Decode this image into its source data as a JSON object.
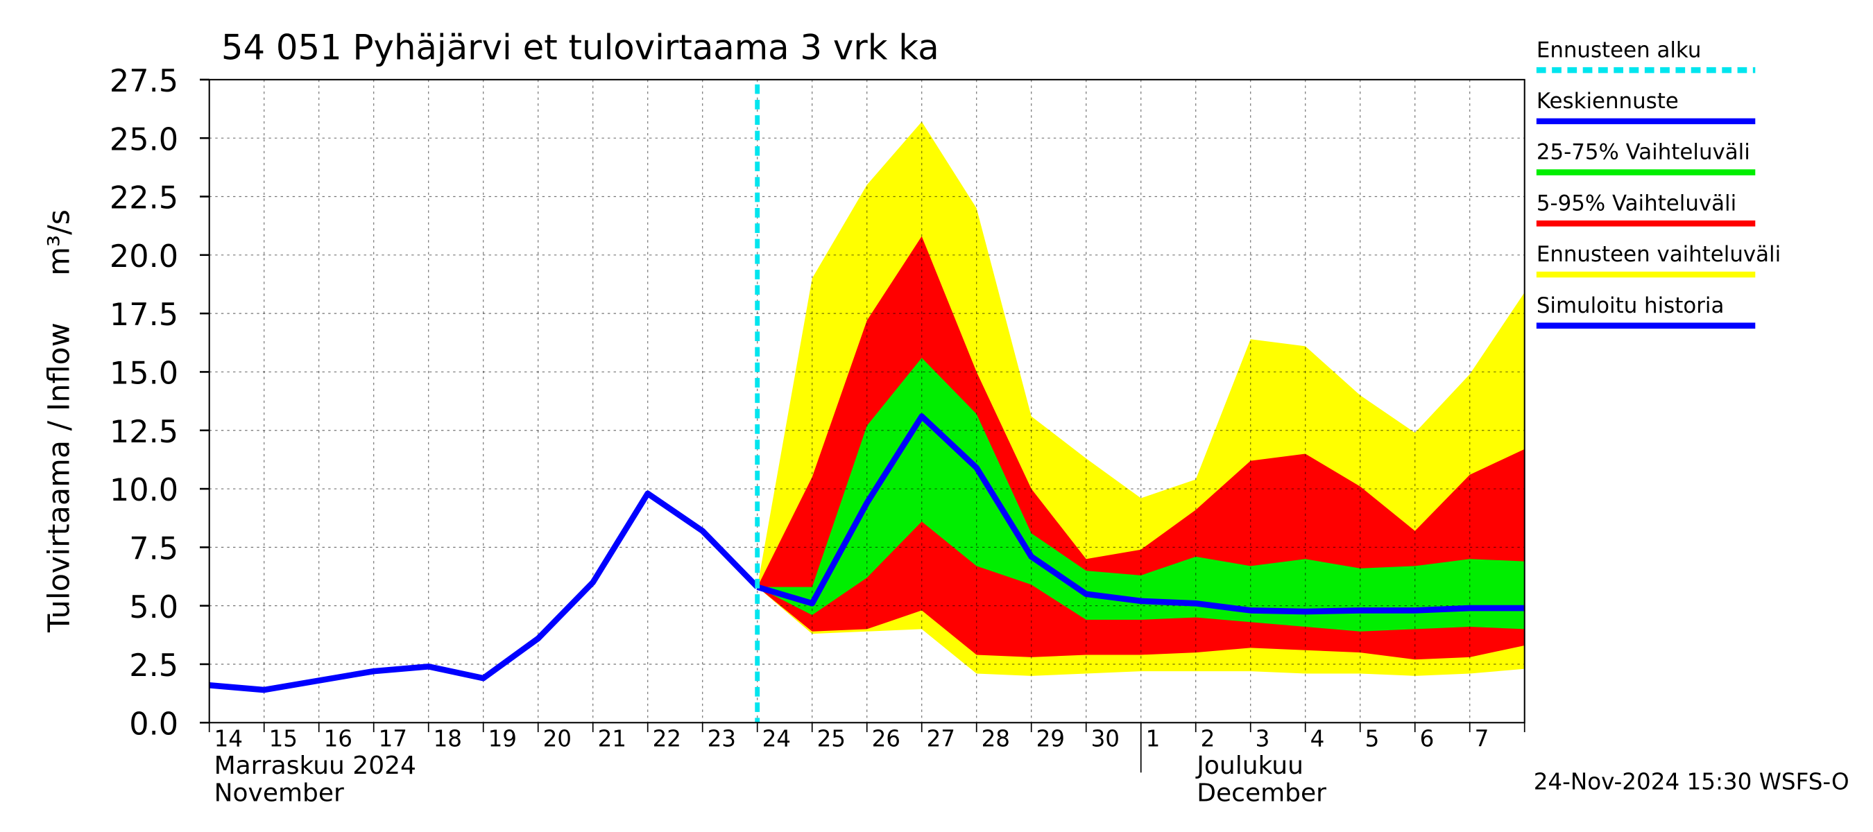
{
  "chart_data": {
    "type": "forecast-band",
    "title": "54 051 Pyhäjärvi et tulovirtaama 3 vrk ka",
    "y_label": "Tulovirtaama / Inflow",
    "y_unit": "m³/s",
    "x": [
      "2024-11-14",
      "2024-11-15",
      "2024-11-16",
      "2024-11-17",
      "2024-11-18",
      "2024-11-19",
      "2024-11-20",
      "2024-11-21",
      "2024-11-22",
      "2024-11-23",
      "2024-11-24",
      "2024-11-25",
      "2024-11-26",
      "2024-11-27",
      "2024-11-28",
      "2024-11-29",
      "2024-11-30",
      "2024-12-01",
      "2024-12-02",
      "2024-12-03",
      "2024-12-04",
      "2024-12-05",
      "2024-12-06",
      "2024-12-07",
      "2024-12-08"
    ],
    "xtick_labels": [
      "14",
      "15",
      "16",
      "17",
      "18",
      "19",
      "20",
      "21",
      "22",
      "23",
      "24",
      "25",
      "26",
      "27",
      "28",
      "29",
      "30",
      "1",
      "2",
      "3",
      "4",
      "5",
      "6",
      "7"
    ],
    "month_labels": [
      {
        "index": 0,
        "lines": [
          "Marraskuu 2024",
          "November"
        ]
      },
      {
        "index": 17,
        "lines": [
          "Joulukuu",
          "December"
        ]
      }
    ],
    "ylim": [
      0,
      27.5
    ],
    "yticks": [
      {
        "value": 0,
        "label": "0.0"
      },
      2.5,
      {
        "value": 5,
        "label": "5.0"
      },
      7.5,
      {
        "value": 10,
        "label": "10.0"
      },
      12.5,
      {
        "value": 15,
        "label": "15.0"
      },
      17.5,
      {
        "value": 20,
        "label": "20.0"
      },
      22.5,
      {
        "value": 25,
        "label": "25.0"
      },
      27.5
    ],
    "grid": true,
    "forecast_start": {
      "name": "Ennusteen alku",
      "color": "#00e5ee",
      "x": "2024-11-24"
    },
    "bands": [
      {
        "name": "Ennusteen vaihteluväli",
        "color": "#ffff00",
        "upper": [
          null,
          null,
          null,
          null,
          null,
          null,
          null,
          null,
          null,
          null,
          5.8,
          19.0,
          23.0,
          25.7,
          22.0,
          13.1,
          11.3,
          9.6,
          10.4,
          16.4,
          16.1,
          14.0,
          12.4,
          14.9,
          18.4
        ],
        "lower": [
          null,
          null,
          null,
          null,
          null,
          null,
          null,
          null,
          null,
          null,
          5.8,
          3.8,
          3.9,
          4.0,
          2.1,
          2.0,
          2.1,
          2.2,
          2.2,
          2.2,
          2.1,
          2.1,
          2.0,
          2.1,
          2.3
        ]
      },
      {
        "name": "5-95% Vaihteluväli",
        "color": "#ff0000",
        "upper": [
          null,
          null,
          null,
          null,
          null,
          null,
          null,
          null,
          null,
          null,
          5.8,
          10.5,
          17.2,
          20.8,
          15.0,
          10.0,
          7.0,
          7.4,
          9.1,
          11.2,
          11.5,
          10.1,
          8.2,
          10.6,
          11.7
        ],
        "lower": [
          null,
          null,
          null,
          null,
          null,
          null,
          null,
          null,
          null,
          null,
          5.8,
          3.9,
          4.0,
          4.8,
          2.9,
          2.8,
          2.9,
          2.9,
          3.0,
          3.2,
          3.1,
          3.0,
          2.7,
          2.8,
          3.3
        ]
      },
      {
        "name": "25-75% Vaihteluväli",
        "color": "#00ee00",
        "upper": [
          null,
          null,
          null,
          null,
          null,
          null,
          null,
          null,
          null,
          null,
          5.8,
          5.8,
          12.7,
          15.6,
          13.2,
          8.1,
          6.5,
          6.3,
          7.1,
          6.7,
          7.0,
          6.6,
          6.7,
          7.0,
          6.9
        ],
        "lower": [
          null,
          null,
          null,
          null,
          null,
          null,
          null,
          null,
          null,
          null,
          5.8,
          4.6,
          6.2,
          8.6,
          6.7,
          5.9,
          4.4,
          4.4,
          4.5,
          4.3,
          4.1,
          3.9,
          4.0,
          4.1,
          4.0
        ]
      }
    ],
    "series": [
      {
        "name": "Simuloitu historia",
        "color": "#0000ff",
        "values": [
          1.6,
          1.4,
          1.8,
          2.2,
          2.4,
          1.9,
          3.6,
          6.0,
          9.8,
          8.2,
          5.8,
          null,
          null,
          null,
          null,
          null,
          null,
          null,
          null,
          null,
          null,
          null,
          null,
          null,
          null
        ]
      },
      {
        "name": "Keskiennuste",
        "color": "#0000ff",
        "values": [
          null,
          null,
          null,
          null,
          null,
          null,
          null,
          null,
          null,
          null,
          5.8,
          5.1,
          9.4,
          13.1,
          10.9,
          7.1,
          5.5,
          5.2,
          5.1,
          4.8,
          4.75,
          4.8,
          4.8,
          4.9,
          4.9
        ]
      }
    ],
    "footer": "24-Nov-2024 15:30 WSFS-O"
  }
}
